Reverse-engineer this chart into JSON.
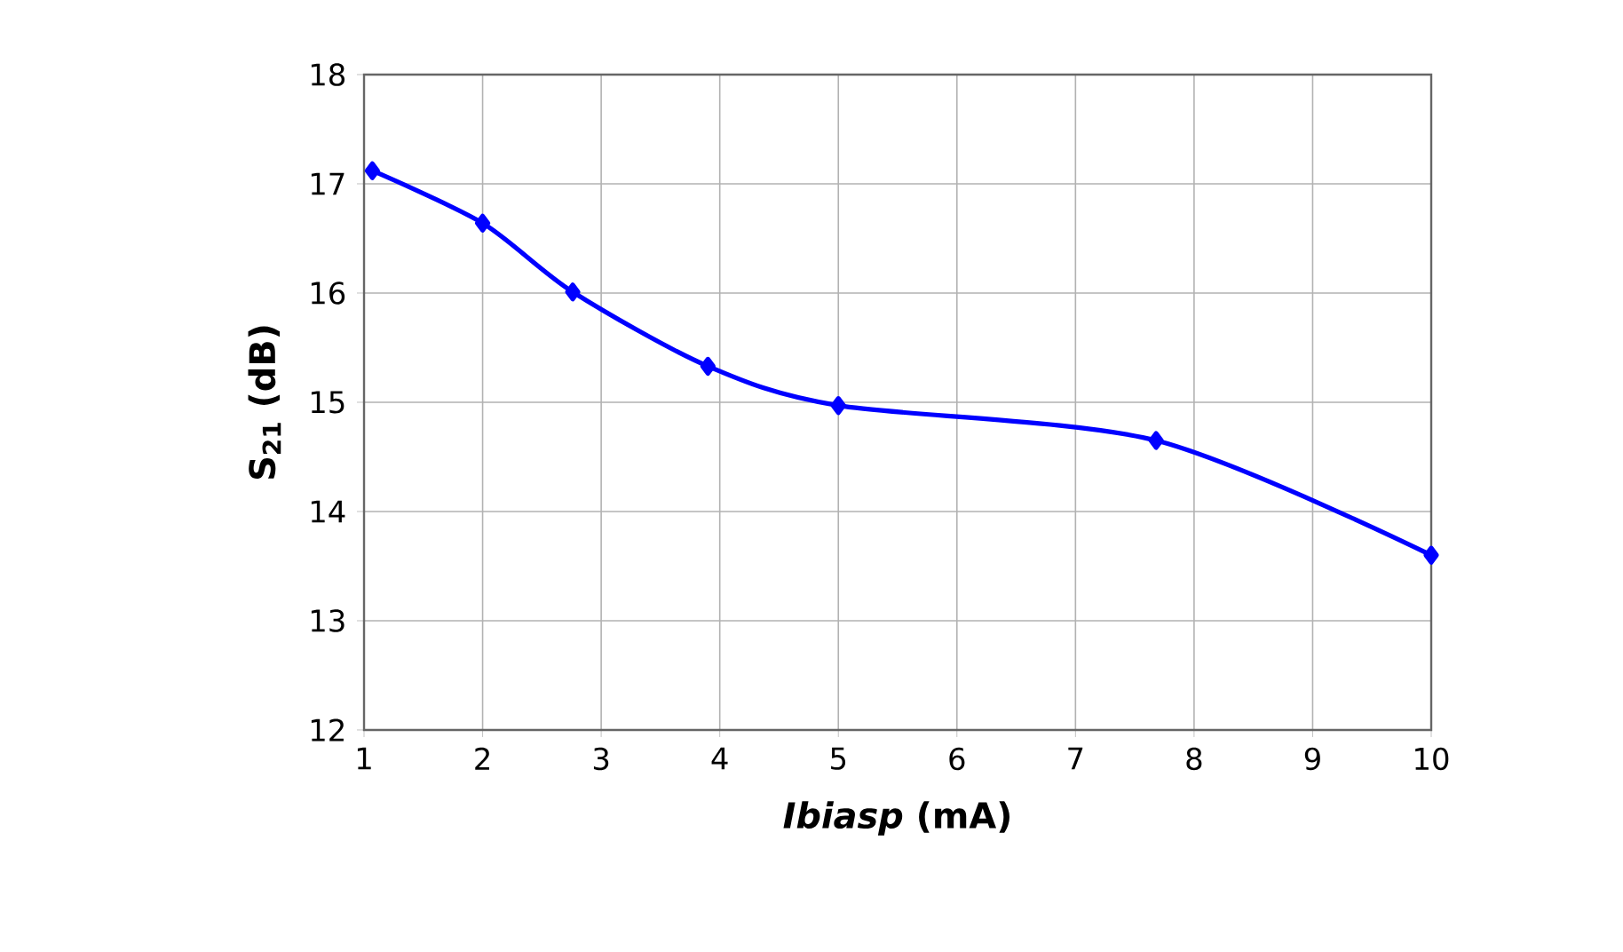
{
  "chart_data": {
    "type": "line",
    "xlabel": "*Ibiasp* (mA)",
    "ylabel": "S$_{21}$ (dB)",
    "x": [
      1.07,
      2.0,
      2.76,
      3.9,
      5.0,
      7.68,
      10.0
    ],
    "series": [
      {
        "color": "#0000ff",
        "values": [
          17.12,
          16.64,
          16.01,
          15.33,
          14.97,
          14.65,
          13.6
        ]
      }
    ],
    "xlim": [
      1,
      10
    ],
    "ylim": [
      12,
      18
    ],
    "xticks": [
      1,
      2,
      3,
      4,
      5,
      6,
      7,
      8,
      9,
      10
    ],
    "yticks": [
      12,
      13,
      14,
      15,
      16,
      17,
      18
    ],
    "grid": true,
    "marker": "diamond",
    "line_style": "solid"
  }
}
